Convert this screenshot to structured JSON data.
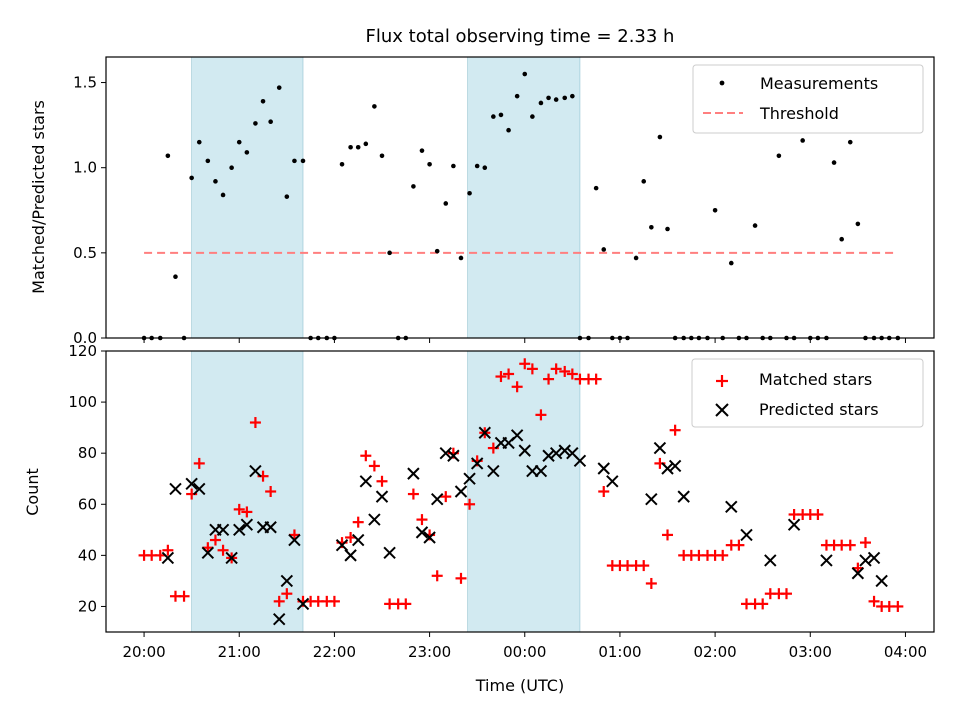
{
  "chart_data": [
    {
      "type": "scatter",
      "title": "Flux total observing time = 2.33 h",
      "xlabel": "",
      "ylabel": "Matched/Predicted stars",
      "xlim_hours": [
        19.6,
        28.3
      ],
      "ylim": [
        0,
        1.65
      ],
      "yticks": [
        0.0,
        0.5,
        1.0,
        1.5
      ],
      "ytick_labels": [
        "0.0",
        "0.5",
        "1.0",
        "1.5"
      ],
      "shaded_intervals": [
        [
          20.5,
          21.67
        ],
        [
          23.4,
          24.58
        ]
      ],
      "shade_color": "#add8e6",
      "legend_position": "upper right",
      "series": [
        {
          "name": "Measurements",
          "marker": "dot",
          "color": "#000000",
          "x": [
            20.0,
            20.08,
            20.17,
            20.25,
            20.33,
            20.42,
            20.5,
            20.58,
            20.67,
            20.75,
            20.83,
            20.92,
            21.0,
            21.08,
            21.17,
            21.25,
            21.33,
            21.42,
            21.5,
            21.58,
            21.67,
            21.75,
            21.83,
            21.92,
            22.0,
            22.08,
            22.17,
            22.25,
            22.33,
            22.42,
            22.5,
            22.58,
            22.67,
            22.75,
            22.83,
            22.92,
            23.0,
            23.08,
            23.17,
            23.25,
            23.33,
            23.42,
            23.5,
            23.58,
            23.67,
            23.75,
            23.83,
            23.92,
            24.0,
            24.08,
            24.17,
            24.25,
            24.33,
            24.42,
            24.5,
            24.58,
            24.67,
            24.75,
            24.83,
            24.92,
            25.0,
            25.08,
            25.17,
            25.25,
            25.33,
            25.42,
            25.5,
            25.58,
            25.67,
            25.75,
            25.83,
            25.92,
            26.0,
            26.08,
            26.17,
            26.25,
            26.33,
            26.42,
            26.5,
            26.58,
            26.67,
            26.75,
            26.83,
            26.92,
            27.0,
            27.08,
            27.17,
            27.25,
            27.33,
            27.42,
            27.5,
            27.58,
            27.67,
            27.75,
            27.83,
            27.92
          ],
          "y": [
            0,
            0,
            0,
            1.07,
            0.36,
            0,
            0.94,
            1.15,
            1.04,
            0.92,
            0.84,
            1.0,
            1.15,
            1.09,
            1.26,
            1.39,
            1.27,
            1.47,
            0.83,
            1.04,
            1.04,
            0,
            0,
            0,
            0,
            1.02,
            1.12,
            1.12,
            1.14,
            1.36,
            1.07,
            0.5,
            0,
            0,
            0.89,
            1.1,
            1.02,
            0.51,
            0.79,
            1.01,
            0.47,
            0.85,
            1.01,
            1.0,
            1.3,
            1.31,
            1.22,
            1.42,
            1.55,
            1.3,
            1.38,
            1.41,
            1.4,
            1.41,
            1.42,
            0,
            0,
            0.88,
            0.52,
            0,
            0,
            0,
            0.47,
            0.92,
            0.65,
            1.18,
            0.64,
            0,
            0,
            0,
            0,
            0,
            0.75,
            0,
            0.44,
            0,
            0,
            0.66,
            0,
            0,
            1.07,
            0,
            0,
            1.16,
            0,
            0,
            0,
            1.03,
            0.58,
            1.15,
            0.67,
            0,
            0,
            0,
            0,
            0
          ]
        },
        {
          "name": "Threshold",
          "line_style": "dashed",
          "color": "#ff7f7f",
          "x": [
            20.0,
            27.9
          ],
          "y": [
            0.5,
            0.5
          ]
        }
      ]
    },
    {
      "type": "scatter",
      "title": "",
      "xlabel": "Time (UTC)",
      "ylabel": "Count",
      "xlim_hours": [
        19.6,
        28.3
      ],
      "ylim": [
        10,
        120
      ],
      "yticks": [
        20,
        40,
        60,
        80,
        100,
        120
      ],
      "ytick_labels": [
        "20",
        "40",
        "60",
        "80",
        "100",
        "120"
      ],
      "xticks_hours": [
        20,
        21,
        22,
        23,
        24,
        25,
        26,
        27,
        28
      ],
      "xtick_labels": [
        "20:00",
        "21:00",
        "22:00",
        "23:00",
        "00:00",
        "01:00",
        "02:00",
        "03:00",
        "04:00"
      ],
      "shaded_intervals": [
        [
          20.5,
          21.67
        ],
        [
          23.4,
          24.58
        ]
      ],
      "shade_color": "#add8e6",
      "legend_position": "upper right",
      "series": [
        {
          "name": "Matched stars",
          "marker": "plus",
          "color": "#ff0000",
          "x": [
            20.0,
            20.08,
            20.17,
            20.25,
            20.33,
            20.42,
            20.5,
            20.58,
            20.67,
            20.75,
            20.83,
            20.92,
            21.0,
            21.08,
            21.17,
            21.25,
            21.33,
            21.42,
            21.5,
            21.58,
            21.67,
            21.75,
            21.83,
            21.92,
            22.0,
            22.08,
            22.17,
            22.25,
            22.33,
            22.42,
            22.5,
            22.58,
            22.67,
            22.75,
            22.83,
            22.92,
            23.0,
            23.08,
            23.17,
            23.25,
            23.33,
            23.42,
            23.5,
            23.58,
            23.67,
            23.75,
            23.83,
            23.92,
            24.0,
            24.08,
            24.17,
            24.25,
            24.33,
            24.42,
            24.5,
            24.58,
            24.67,
            24.75,
            24.83,
            24.92,
            25.0,
            25.08,
            25.17,
            25.25,
            25.33,
            25.42,
            25.5,
            25.58,
            25.67,
            25.75,
            25.83,
            25.92,
            26.0,
            26.08,
            26.17,
            26.25,
            26.33,
            26.42,
            26.5,
            26.58,
            26.67,
            26.75,
            26.83,
            26.92,
            27.0,
            27.08,
            27.17,
            27.25,
            27.33,
            27.42,
            27.5,
            27.58,
            27.67,
            27.75,
            27.83,
            27.92
          ],
          "y": [
            40,
            40,
            40,
            42,
            24,
            24,
            64,
            76,
            43,
            46,
            42,
            39,
            58,
            57,
            92,
            71,
            65,
            22,
            25,
            48,
            22,
            22,
            22,
            22,
            22,
            45,
            47,
            53,
            79,
            75,
            69,
            21,
            21,
            21,
            64,
            54,
            48,
            32,
            63,
            80,
            31,
            60,
            77,
            88,
            82,
            110,
            111,
            106,
            115,
            113,
            95,
            109,
            113,
            112,
            111,
            109,
            109,
            109,
            65,
            36,
            36,
            36,
            36,
            36,
            29,
            76,
            48,
            89,
            40,
            40,
            40,
            40,
            40,
            40,
            44,
            44,
            21,
            21,
            21,
            25,
            25,
            25,
            56,
            56,
            56,
            56,
            44,
            44,
            44,
            44,
            35,
            45,
            22,
            20,
            20,
            20
          ],
          "note_offset": 0.22
        },
        {
          "name": "Predicted stars",
          "marker": "x",
          "color": "#000000",
          "x": [
            20.25,
            20.33,
            20.5,
            20.58,
            20.67,
            20.75,
            20.83,
            20.92,
            21.0,
            21.08,
            21.17,
            21.25,
            21.33,
            21.42,
            21.5,
            21.58,
            21.67,
            22.08,
            22.17,
            22.25,
            22.33,
            22.42,
            22.5,
            22.58,
            22.83,
            22.92,
            23.0,
            23.08,
            23.17,
            23.25,
            23.33,
            23.42,
            23.5,
            23.58,
            23.67,
            23.75,
            23.83,
            23.92,
            24.0,
            24.08,
            24.17,
            24.25,
            24.33,
            24.42,
            24.5,
            24.58,
            24.83,
            24.92,
            25.33,
            25.42,
            25.5,
            25.58,
            25.67,
            26.17,
            26.33,
            26.58,
            26.83,
            27.17,
            27.5,
            27.58,
            27.67,
            27.75
          ],
          "y": [
            39,
            66,
            68,
            66,
            41,
            50,
            50,
            39,
            50,
            52,
            73,
            51,
            51,
            15,
            30,
            46,
            21,
            44,
            40,
            46,
            69,
            54,
            63,
            41,
            72,
            49,
            47,
            62,
            80,
            79,
            65,
            70,
            76,
            88,
            73,
            84,
            84,
            87,
            81,
            73,
            73,
            79,
            80,
            81,
            80,
            77,
            74,
            69,
            62,
            82,
            74,
            75,
            63,
            59,
            48,
            38,
            52,
            38,
            33,
            38,
            39,
            30
          ]
        }
      ]
    }
  ]
}
